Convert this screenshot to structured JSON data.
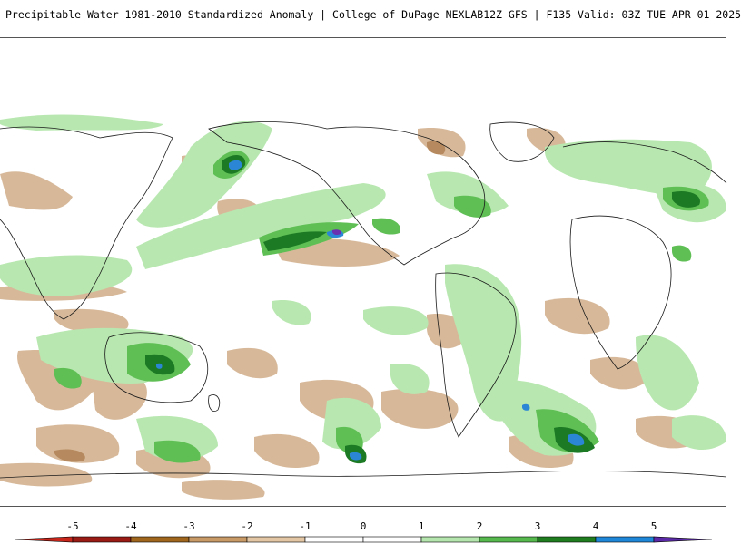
{
  "header": {
    "title": "Precipitable Water 1981-2010 Standardized Anomaly | College of DuPage NEXLAB",
    "run_info": "12Z GFS | F135 Valid: 03Z TUE APR 01 2025"
  },
  "legend": {
    "ticks": [
      "-5",
      "-4",
      "-3",
      "-2",
      "-1",
      "0",
      "1",
      "2",
      "3",
      "4",
      "5"
    ],
    "colors": [
      "#c9261b",
      "#9a1a14",
      "#a0661e",
      "#c89a66",
      "#e3c7a4",
      "#ffffff",
      "#ffffff",
      "#b4e6ae",
      "#56b94e",
      "#1f7d1f",
      "#1e87d8",
      "#5b2aa8"
    ]
  },
  "map": {
    "palette": {
      "light_green": "#b8e8b0",
      "mid_green": "#5fbf55",
      "dark_green": "#1d7a24",
      "blue": "#2b86d6",
      "purple": "#6a2eb0",
      "tan": "#d7b99a",
      "dark_tan": "#b68a5e",
      "coast": "#1a1a1a"
    }
  }
}
